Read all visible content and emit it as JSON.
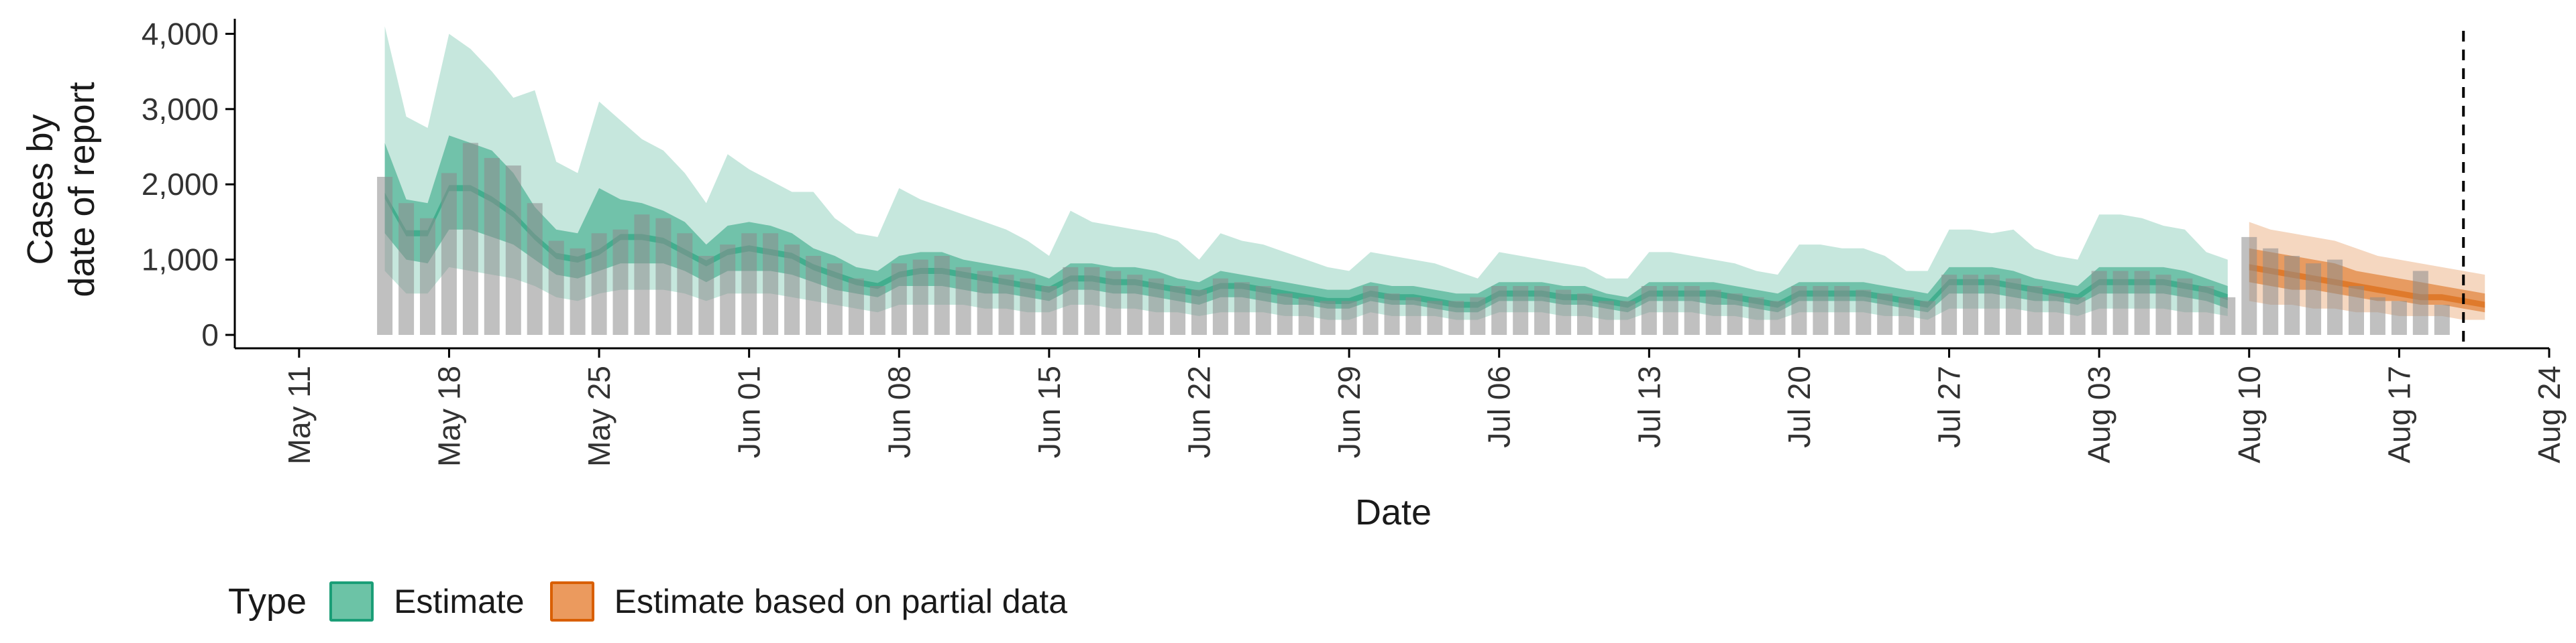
{
  "chart_data": {
    "type": "area",
    "xlabel": "Date",
    "ylabel": "Cases by date of report",
    "ylabel_lines": [
      "Cases by",
      "date of report"
    ],
    "x_ticks": [
      "May 11",
      "May 18",
      "May 25",
      "Jun 01",
      "Jun 08",
      "Jun 15",
      "Jun 22",
      "Jun 29",
      "Jul 06",
      "Jul 13",
      "Jul 20",
      "Jul 27",
      "Aug 03",
      "Aug 10",
      "Aug 17",
      "Aug 24"
    ],
    "y_ticks": [
      "0",
      "1,000",
      "2,000",
      "3,000",
      "4,000"
    ],
    "ylim": [
      0,
      4200
    ],
    "xlim": [
      "2020-05-08",
      "2020-08-24"
    ],
    "vline_date": "2020-08-20",
    "grid": false,
    "legend": {
      "title": "Type",
      "position": "bottom",
      "entries": [
        "Estimate",
        "Estimate based on partial data"
      ]
    },
    "colors": {
      "estimate": "#1b9e77",
      "partial": "#d95f02",
      "bars": "#bdbdbd"
    },
    "start_date": "2020-05-15",
    "bars": [
      2100,
      1750,
      1550,
      2150,
      2550,
      2350,
      2250,
      1750,
      1250,
      1150,
      1350,
      1400,
      1600,
      1550,
      1350,
      1050,
      1200,
      1350,
      1350,
      1200,
      1050,
      950,
      750,
      650,
      950,
      1000,
      1050,
      900,
      850,
      800,
      750,
      650,
      900,
      900,
      850,
      800,
      750,
      650,
      600,
      750,
      700,
      650,
      550,
      500,
      450,
      450,
      650,
      550,
      500,
      450,
      450,
      500,
      650,
      650,
      650,
      600,
      550,
      450,
      450,
      650,
      650,
      650,
      600,
      550,
      500,
      450,
      650,
      650,
      650,
      600,
      550,
      500,
      450,
      800,
      800,
      800,
      750,
      650,
      550,
      500,
      850,
      850,
      850,
      800,
      750,
      650,
      500,
      1300,
      1150,
      1050,
      950,
      1000,
      650,
      500,
      450,
      850,
      400
    ],
    "estimate": {
      "median": [
        1850,
        1350,
        1350,
        1950,
        1950,
        1800,
        1600,
        1300,
        1050,
        1000,
        1100,
        1300,
        1300,
        1250,
        1100,
        950,
        1100,
        1150,
        1100,
        1050,
        900,
        800,
        700,
        650,
        800,
        850,
        850,
        800,
        750,
        700,
        650,
        600,
        750,
        750,
        700,
        700,
        650,
        600,
        550,
        650,
        650,
        600,
        550,
        500,
        450,
        450,
        550,
        500,
        500,
        450,
        400,
        400,
        550,
        550,
        550,
        500,
        500,
        450,
        400,
        550,
        550,
        550,
        550,
        500,
        450,
        400,
        550,
        550,
        550,
        550,
        500,
        450,
        400,
        700,
        700,
        700,
        650,
        600,
        550,
        500,
        700,
        700,
        700,
        700,
        650,
        600,
        500
      ],
      "lower50": [
        1350,
        1000,
        950,
        1400,
        1400,
        1300,
        1200,
        1000,
        800,
        750,
        850,
        950,
        950,
        950,
        850,
        700,
        850,
        850,
        850,
        800,
        700,
        600,
        550,
        500,
        650,
        650,
        650,
        600,
        550,
        550,
        500,
        450,
        600,
        600,
        550,
        550,
        500,
        450,
        400,
        500,
        500,
        450,
        400,
        400,
        350,
        350,
        450,
        400,
        400,
        350,
        300,
        300,
        450,
        450,
        450,
        400,
        400,
        350,
        300,
        450,
        450,
        450,
        400,
        400,
        350,
        300,
        450,
        450,
        450,
        450,
        400,
        350,
        300,
        550,
        550,
        550,
        500,
        450,
        450,
        400,
        550,
        550,
        550,
        550,
        500,
        450,
        350
      ],
      "upper50": [
        2550,
        1800,
        1750,
        2650,
        2550,
        2450,
        2150,
        1700,
        1400,
        1350,
        1950,
        1800,
        1750,
        1650,
        1500,
        1200,
        1450,
        1500,
        1450,
        1350,
        1150,
        1050,
        900,
        850,
        1050,
        1100,
        1100,
        1000,
        950,
        900,
        850,
        750,
        950,
        950,
        900,
        900,
        850,
        750,
        700,
        850,
        800,
        750,
        700,
        650,
        600,
        600,
        700,
        650,
        650,
        600,
        550,
        550,
        700,
        700,
        700,
        650,
        650,
        550,
        500,
        700,
        700,
        700,
        700,
        650,
        600,
        550,
        700,
        700,
        700,
        700,
        650,
        600,
        550,
        900,
        900,
        900,
        850,
        750,
        700,
        650,
        900,
        900,
        900,
        900,
        850,
        750,
        650
      ],
      "lower90": [
        850,
        550,
        550,
        900,
        850,
        800,
        750,
        650,
        500,
        450,
        550,
        600,
        600,
        600,
        550,
        450,
        550,
        550,
        550,
        500,
        450,
        400,
        350,
        300,
        400,
        400,
        400,
        400,
        350,
        350,
        300,
        300,
        400,
        400,
        350,
        350,
        300,
        300,
        250,
        300,
        300,
        300,
        250,
        250,
        200,
        200,
        300,
        250,
        250,
        250,
        200,
        200,
        300,
        300,
        300,
        250,
        250,
        200,
        200,
        300,
        300,
        300,
        250,
        250,
        200,
        200,
        300,
        300,
        300,
        300,
        250,
        250,
        200,
        350,
        350,
        350,
        350,
        300,
        300,
        250,
        350,
        350,
        350,
        350,
        300,
        300,
        250
      ],
      "upper90": [
        4100,
        2900,
        2750,
        4000,
        3800,
        3500,
        3150,
        3250,
        2300,
        2150,
        3100,
        2850,
        2600,
        2450,
        2150,
        1750,
        2400,
        2200,
        2050,
        1900,
        1900,
        1550,
        1350,
        1300,
        1950,
        1800,
        1700,
        1600,
        1500,
        1400,
        1250,
        1050,
        1650,
        1500,
        1450,
        1400,
        1350,
        1250,
        1000,
        1350,
        1250,
        1200,
        1100,
        1000,
        900,
        850,
        1100,
        1050,
        1000,
        950,
        850,
        750,
        1100,
        1050,
        1000,
        950,
        900,
        750,
        750,
        1100,
        1100,
        1050,
        1000,
        950,
        850,
        800,
        1200,
        1200,
        1150,
        1150,
        1050,
        850,
        850,
        1400,
        1400,
        1350,
        1400,
        1150,
        1050,
        1000,
        1600,
        1600,
        1550,
        1450,
        1400,
        1100,
        1000
      ]
    },
    "partial": {
      "start_index": 87,
      "median": [
        900,
        850,
        800,
        750,
        700,
        650,
        600,
        550,
        500,
        500,
        450,
        400
      ],
      "lower50": [
        700,
        650,
        600,
        600,
        550,
        500,
        450,
        450,
        400,
        400,
        350,
        300
      ],
      "upper50": [
        1150,
        1100,
        1050,
        1000,
        950,
        850,
        800,
        750,
        700,
        650,
        600,
        550
      ],
      "lower90": [
        450,
        400,
        400,
        350,
        350,
        300,
        300,
        250,
        250,
        250,
        200,
        200
      ],
      "upper90": [
        1500,
        1400,
        1350,
        1300,
        1250,
        1150,
        1050,
        1000,
        950,
        900,
        850,
        800
      ]
    }
  }
}
